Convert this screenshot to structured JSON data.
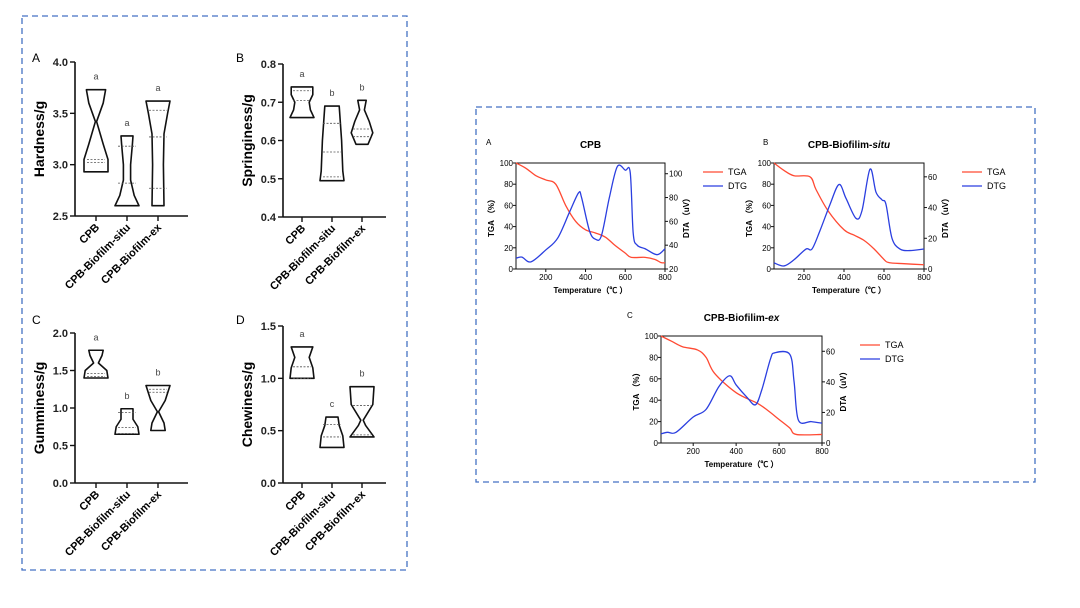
{
  "colors": {
    "frame": "#4472c4",
    "tga": "#ff4a33",
    "dtg": "#2b3fe0",
    "violin": "#111111"
  },
  "chart_data": [
    {
      "type": "violin",
      "panel": "A",
      "ylabel": "Hardness/g",
      "ylim": [
        2.5,
        4.0
      ],
      "yticks": [
        "2.5",
        "3.0",
        "3.5",
        "4.0"
      ],
      "categories": [
        "CPB",
        "CPB-Biofilm-situ",
        "CPB-Biofilm-ex"
      ],
      "letters": [
        "a",
        "a",
        "a"
      ],
      "violins": [
        {
          "profile": [
            [
              2.93,
              1
            ],
            [
              3.05,
              1
            ],
            [
              3.2,
              0.6
            ],
            [
              3.42,
              0.05
            ],
            [
              3.6,
              0.6
            ],
            [
              3.73,
              0.8
            ]
          ],
          "lines": [
            3.02,
            3.05
          ]
        },
        {
          "profile": [
            [
              2.6,
              1
            ],
            [
              2.7,
              0.6
            ],
            [
              2.85,
              0.3
            ],
            [
              3.0,
              0.3
            ],
            [
              3.2,
              0.45
            ],
            [
              3.28,
              0.5
            ]
          ],
          "lines": [
            2.82,
            3.18
          ]
        },
        {
          "profile": [
            [
              2.6,
              0.5
            ],
            [
              3.0,
              0.45
            ],
            [
              3.3,
              0.5
            ],
            [
              3.5,
              0.8
            ],
            [
              3.62,
              1
            ]
          ],
          "lines": [
            2.77,
            3.27,
            3.53
          ]
        }
      ]
    },
    {
      "type": "violin",
      "panel": "B",
      "ylabel": "Springiness/g",
      "ylim": [
        0.4,
        0.8
      ],
      "yticks": [
        "0.4",
        "0.5",
        "0.6",
        "0.7",
        "0.8"
      ],
      "categories": [
        "CPB",
        "CPB-Biofilm-situ",
        "CPB-Biofilm-ex"
      ],
      "letters": [
        "a",
        "b",
        "b"
      ],
      "violins": [
        {
          "profile": [
            [
              0.66,
              1
            ],
            [
              0.68,
              0.7
            ],
            [
              0.7,
              0.6
            ],
            [
              0.72,
              0.9
            ],
            [
              0.74,
              0.9
            ]
          ],
          "lines": [
            0.705,
            0.73
          ]
        },
        {
          "profile": [
            [
              0.495,
              1
            ],
            [
              0.52,
              0.9
            ],
            [
              0.6,
              0.8
            ],
            [
              0.69,
              0.6
            ]
          ],
          "lines": [
            0.505,
            0.57,
            0.645
          ]
        },
        {
          "profile": [
            [
              0.59,
              0.5
            ],
            [
              0.62,
              0.9
            ],
            [
              0.65,
              0.6
            ],
            [
              0.68,
              0.2
            ],
            [
              0.705,
              0.35
            ]
          ],
          "lines": [
            0.61,
            0.63
          ]
        }
      ]
    },
    {
      "type": "violin",
      "panel": "C",
      "ylabel": "Gumminess/g",
      "ylim": [
        0,
        2.0
      ],
      "yticks": [
        "0.0",
        "0.5",
        "1.0",
        "1.5",
        "2.0"
      ],
      "categories": [
        "CPB",
        "CPB-Biofilm-situ",
        "CPB-Biofilm-ex"
      ],
      "letters": [
        "a",
        "b",
        "b"
      ],
      "violins": [
        {
          "profile": [
            [
              1.4,
              1
            ],
            [
              1.5,
              0.9
            ],
            [
              1.6,
              0.2
            ],
            [
              1.7,
              0.5
            ],
            [
              1.77,
              0.6
            ]
          ],
          "lines": [
            1.42,
            1.46
          ]
        },
        {
          "profile": [
            [
              0.65,
              1
            ],
            [
              0.75,
              0.9
            ],
            [
              0.85,
              0.5
            ],
            [
              0.99,
              0.5
            ]
          ],
          "lines": [
            0.66,
            0.74,
            0.94
          ]
        },
        {
          "profile": [
            [
              0.7,
              0.6
            ],
            [
              0.8,
              0.5
            ],
            [
              0.95,
              0.05
            ],
            [
              1.1,
              0.6
            ],
            [
              1.3,
              1
            ]
          ],
          "lines": [
            1.21,
            1.25
          ]
        }
      ]
    },
    {
      "type": "violin",
      "panel": "D",
      "ylabel": "Chewiness/g",
      "ylim": [
        0,
        1.5
      ],
      "yticks": [
        "0.0",
        "0.5",
        "1.0",
        "1.5"
      ],
      "categories": [
        "CPB",
        "CPB-Biofilm-situ",
        "CPB-Biofilm-ex"
      ],
      "letters": [
        "a",
        "c",
        "b"
      ],
      "violins": [
        {
          "profile": [
            [
              1.0,
              1
            ],
            [
              1.1,
              0.9
            ],
            [
              1.2,
              0.6
            ],
            [
              1.3,
              0.9
            ]
          ],
          "lines": [
            1.0,
            1.11
          ]
        },
        {
          "profile": [
            [
              0.34,
              1
            ],
            [
              0.45,
              0.9
            ],
            [
              0.55,
              0.6
            ],
            [
              0.63,
              0.5
            ]
          ],
          "lines": [
            0.44,
            0.56
          ]
        },
        {
          "profile": [
            [
              0.44,
              1
            ],
            [
              0.55,
              0.3
            ],
            [
              0.6,
              0.1
            ],
            [
              0.75,
              0.9
            ],
            [
              0.92,
              1
            ]
          ],
          "lines": [
            0.46,
            0.74
          ]
        }
      ]
    },
    {
      "type": "line",
      "panel": "A",
      "title": "CPB",
      "xlabel": "Temperature（℃ ）",
      "ylabel": "TGA （%）",
      "y2label": "DTA （uV）",
      "xlim": [
        50,
        800
      ],
      "xticks": [
        "200",
        "400",
        "600",
        "800"
      ],
      "ylim": [
        0,
        100
      ],
      "yticks": [
        "0",
        "20",
        "40",
        "60",
        "80",
        "100"
      ],
      "y2lim": [
        20,
        109
      ],
      "y2ticks": [
        "20",
        "40",
        "60",
        "80",
        "100"
      ],
      "series": [
        {
          "name": "TGA",
          "axis": "left",
          "points": [
            [
              50,
              100
            ],
            [
              100,
              95
            ],
            [
              150,
              88
            ],
            [
              200,
              84
            ],
            [
              250,
              80
            ],
            [
              300,
              60
            ],
            [
              350,
              45
            ],
            [
              400,
              37
            ],
            [
              450,
              34
            ],
            [
              500,
              30
            ],
            [
              550,
              22
            ],
            [
              600,
              15
            ],
            [
              630,
              11
            ],
            [
              700,
              11
            ],
            [
              750,
              9
            ],
            [
              780,
              6
            ],
            [
              800,
              6
            ]
          ]
        },
        {
          "name": "DTG",
          "axis": "right",
          "points": [
            [
              50,
              29
            ],
            [
              80,
              30
            ],
            [
              125,
              26
            ],
            [
              200,
              36
            ],
            [
              260,
              46
            ],
            [
              320,
              68
            ],
            [
              365,
              84
            ],
            [
              380,
              80
            ],
            [
              420,
              52
            ],
            [
              450,
              45
            ],
            [
              480,
              48
            ],
            [
              520,
              80
            ],
            [
              560,
              106
            ],
            [
              600,
              103
            ],
            [
              625,
              101
            ],
            [
              640,
              50
            ],
            [
              660,
              40
            ],
            [
              700,
              37
            ],
            [
              760,
              32
            ],
            [
              800,
              37
            ]
          ]
        }
      ]
    },
    {
      "type": "line",
      "panel": "B",
      "title": "CPB-Biofilim-",
      "title_italic": "situ",
      "xlabel": "Temperature（℃ ）",
      "ylabel": "TGA （%）",
      "y2label": "DTA （uV）",
      "xlim": [
        50,
        800
      ],
      "xticks": [
        "200",
        "400",
        "600",
        "800"
      ],
      "ylim": [
        0,
        100
      ],
      "yticks": [
        "0",
        "20",
        "40",
        "60",
        "80",
        "100"
      ],
      "y2lim": [
        0,
        69
      ],
      "y2ticks": [
        "0",
        "20",
        "40",
        "60"
      ],
      "series": [
        {
          "name": "TGA",
          "axis": "left",
          "points": [
            [
              50,
              100
            ],
            [
              100,
              93
            ],
            [
              150,
              88
            ],
            [
              230,
              87
            ],
            [
              260,
              75
            ],
            [
              320,
              55
            ],
            [
              400,
              37
            ],
            [
              450,
              32
            ],
            [
              500,
              27
            ],
            [
              550,
              19
            ],
            [
              600,
              9
            ],
            [
              625,
              6
            ],
            [
              700,
              5
            ],
            [
              800,
              4
            ]
          ]
        },
        {
          "name": "DTG",
          "axis": "right",
          "points": [
            [
              50,
              4
            ],
            [
              100,
              2
            ],
            [
              150,
              6
            ],
            [
              210,
              13
            ],
            [
              240,
              13
            ],
            [
              280,
              25
            ],
            [
              330,
              42
            ],
            [
              375,
              55
            ],
            [
              410,
              46
            ],
            [
              460,
              33
            ],
            [
              490,
              38
            ],
            [
              530,
              65
            ],
            [
              560,
              50
            ],
            [
              590,
              45
            ],
            [
              610,
              42
            ],
            [
              640,
              20
            ],
            [
              680,
              13
            ],
            [
              730,
              12
            ],
            [
              800,
              13
            ]
          ]
        }
      ]
    },
    {
      "type": "line",
      "panel": "C",
      "title": "CPB-Biofilim-",
      "title_italic": "ex",
      "xlabel": "Temperature（℃ ）",
      "ylabel": "TGA （%）",
      "y2label": "DTA （uV）",
      "xlim": [
        50,
        800
      ],
      "xticks": [
        "200",
        "400",
        "600",
        "800"
      ],
      "ylim": [
        0,
        100
      ],
      "yticks": [
        "0",
        "20",
        "40",
        "60",
        "80",
        "100"
      ],
      "y2lim": [
        0,
        70
      ],
      "y2ticks": [
        "0",
        "20",
        "40",
        "60"
      ],
      "series": [
        {
          "name": "TGA",
          "axis": "left",
          "points": [
            [
              50,
              100
            ],
            [
              100,
              95
            ],
            [
              150,
              90
            ],
            [
              220,
              87
            ],
            [
              260,
              80
            ],
            [
              300,
              65
            ],
            [
              400,
              47
            ],
            [
              500,
              37
            ],
            [
              550,
              30
            ],
            [
              600,
              22
            ],
            [
              650,
              14
            ],
            [
              680,
              8
            ],
            [
              800,
              8
            ]
          ]
        },
        {
          "name": "DTG",
          "axis": "right",
          "points": [
            [
              50,
              6
            ],
            [
              80,
              7
            ],
            [
              120,
              7
            ],
            [
              200,
              17
            ],
            [
              260,
              22
            ],
            [
              320,
              37
            ],
            [
              370,
              44
            ],
            [
              400,
              38
            ],
            [
              450,
              30
            ],
            [
              490,
              25
            ],
            [
              520,
              35
            ],
            [
              560,
              55
            ],
            [
              580,
              59
            ],
            [
              650,
              58
            ],
            [
              670,
              40
            ],
            [
              690,
              15
            ],
            [
              750,
              14
            ],
            [
              800,
              13
            ]
          ]
        }
      ]
    }
  ]
}
